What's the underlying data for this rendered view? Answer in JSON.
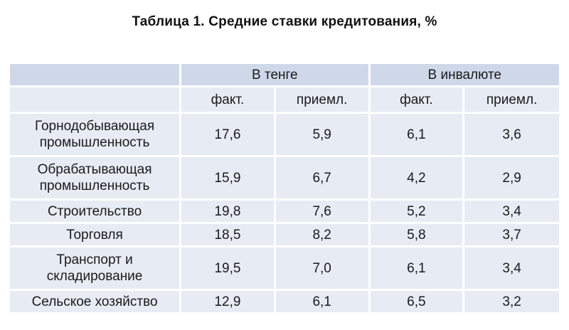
{
  "title": "Таблица 1. Средние ставки кредитования, %",
  "table": {
    "groups": [
      "В тенге",
      "В инвалюте"
    ],
    "subheaders": [
      "факт.",
      "приемл.",
      "факт.",
      "приемл."
    ],
    "rows": [
      {
        "label": "Горнодобывающая промышленность",
        "values": [
          "17,6",
          "5,9",
          "6,1",
          "3,6"
        ]
      },
      {
        "label": "Обрабатывающая промышленность",
        "values": [
          "15,9",
          "6,7",
          "4,2",
          "2,9"
        ]
      },
      {
        "label": "Строительство",
        "values": [
          "19,8",
          "7,6",
          "5,2",
          "3,4"
        ]
      },
      {
        "label": "Торговля",
        "values": [
          "18,5",
          "8,2",
          "5,8",
          "3,7"
        ]
      },
      {
        "label": "Транспорт и складирование",
        "values": [
          "19,5",
          "7,0",
          "6,1",
          "3,4"
        ]
      },
      {
        "label": "Сельское хозяйство",
        "values": [
          "12,9",
          "6,1",
          "6,5",
          "3,2"
        ]
      }
    ]
  },
  "colors": {
    "header_fill": "#cfd8e9",
    "cell_fill": "#e6ebf4"
  }
}
